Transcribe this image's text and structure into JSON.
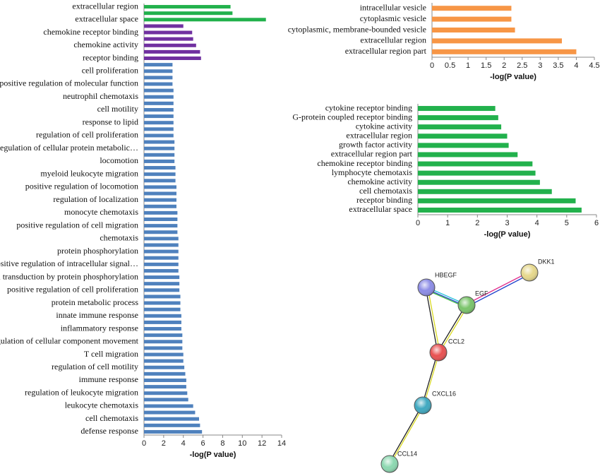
{
  "chart_data": [
    {
      "type": "bar",
      "orientation": "horizontal",
      "xlabel": "-log(P value)",
      "categories": [
        "extracellular region",
        null,
        "extracellular space",
        null,
        "chemokine receptor binding",
        null,
        "chemokine activity",
        null,
        "receptor binding",
        null,
        "cell proliferation",
        null,
        "positive regulation of molecular function",
        null,
        "neutrophil chemotaxis",
        null,
        "cell motility",
        null,
        "response to lipid",
        null,
        "regulation of cell proliferation",
        null,
        "regulation of cellular protein metabolic…",
        null,
        "locomotion",
        null,
        "myeloid leukocyte migration",
        null,
        "positive regulation of locomotion",
        null,
        "regulation of localization",
        null,
        "monocyte chemotaxis",
        null,
        "positive regulation of cell migration",
        null,
        "chemotaxis",
        null,
        "protein phosphorylation",
        null,
        "positive regulation of intracellular signal…",
        null,
        "signal transduction by protein phosphorylation",
        null,
        "positive regulation of cell proliferation",
        null,
        "protein metabolic process",
        null,
        "innate immune response",
        null,
        "inflammatory response",
        null,
        "regulation of cellular component movement",
        null,
        "T cell migration",
        null,
        "regulation of cell motility",
        null,
        "immune response",
        null,
        "regulation of leukocyte migration",
        null,
        "leukocyte chemotaxis",
        null,
        "cell chemotaxis",
        null,
        "defense response"
      ],
      "values": [
        8.8,
        9.0,
        12.4,
        4.0,
        4.9,
        5.0,
        5.3,
        5.7,
        5.8,
        2.9,
        2.9,
        2.9,
        2.9,
        3.0,
        3.0,
        3.0,
        3.0,
        3.0,
        3.0,
        3.0,
        3.0,
        3.1,
        3.1,
        3.1,
        3.1,
        3.2,
        3.2,
        3.2,
        3.3,
        3.3,
        3.3,
        3.3,
        3.4,
        3.4,
        3.4,
        3.4,
        3.5,
        3.5,
        3.5,
        3.5,
        3.5,
        3.5,
        3.6,
        3.6,
        3.6,
        3.7,
        3.7,
        3.7,
        3.8,
        3.8,
        3.8,
        3.9,
        3.9,
        3.9,
        4.0,
        4.0,
        4.1,
        4.2,
        4.3,
        4.3,
        4.4,
        4.5,
        5.0,
        5.2,
        5.6,
        5.7,
        5.9
      ],
      "colors": [
        "#22b14c",
        "#22b14c",
        "#22b14c",
        "#7030a0",
        "#7030a0",
        "#7030a0",
        "#7030a0",
        "#7030a0",
        "#7030a0",
        "#4f81bd",
        "#4f81bd",
        "#4f81bd",
        "#4f81bd",
        "#4f81bd",
        "#4f81bd",
        "#4f81bd",
        "#4f81bd",
        "#4f81bd",
        "#4f81bd",
        "#4f81bd",
        "#4f81bd",
        "#4f81bd",
        "#4f81bd",
        "#4f81bd",
        "#4f81bd",
        "#4f81bd",
        "#4f81bd",
        "#4f81bd",
        "#4f81bd",
        "#4f81bd",
        "#4f81bd",
        "#4f81bd",
        "#4f81bd",
        "#4f81bd",
        "#4f81bd",
        "#4f81bd",
        "#4f81bd",
        "#4f81bd",
        "#4f81bd",
        "#4f81bd",
        "#4f81bd",
        "#4f81bd",
        "#4f81bd",
        "#4f81bd",
        "#4f81bd",
        "#4f81bd",
        "#4f81bd",
        "#4f81bd",
        "#4f81bd",
        "#4f81bd",
        "#4f81bd",
        "#4f81bd",
        "#4f81bd",
        "#4f81bd",
        "#4f81bd",
        "#4f81bd",
        "#4f81bd",
        "#4f81bd",
        "#4f81bd",
        "#4f81bd",
        "#4f81bd",
        "#4f81bd",
        "#4f81bd",
        "#4f81bd",
        "#4f81bd",
        "#4f81bd",
        "#4f81bd"
      ],
      "xlim": [
        0,
        14
      ],
      "xticks": [
        0,
        2,
        4,
        6,
        8,
        10,
        12,
        14
      ]
    },
    {
      "type": "bar",
      "orientation": "horizontal",
      "xlabel": "-log(P value)",
      "categories": [
        "intracellular vesicle",
        "cytoplasmic vesicle",
        "cytoplasmic, membrane-bounded vesicle",
        "extracellular region",
        "extracellular region part"
      ],
      "values": [
        2.2,
        2.2,
        2.3,
        3.6,
        4.0
      ],
      "color": "#f79646",
      "xlim": [
        0,
        4.5
      ],
      "xticks": [
        0,
        0.5,
        1,
        1.5,
        2,
        2.5,
        3,
        3.5,
        4,
        4.5
      ]
    },
    {
      "type": "bar",
      "orientation": "horizontal",
      "xlabel": "-log(P value)",
      "categories": [
        "cytokine receptor binding",
        "G-protein coupled receptor binding",
        "cytokine activity",
        "extracellular region",
        "growth factor activity",
        "extracellular region part",
        "chemokine receptor binding",
        "lymphocyte chemotaxis",
        "chemokine activity",
        "cell chemotaxis",
        "receptor binding",
        "extracellular space"
      ],
      "values": [
        2.6,
        2.7,
        2.8,
        3.0,
        3.05,
        3.35,
        3.85,
        3.95,
        4.1,
        4.5,
        5.3,
        5.5
      ],
      "color": "#22b14c",
      "xlim": [
        0,
        6
      ],
      "xticks": [
        0,
        1,
        2,
        3,
        4,
        5,
        6
      ]
    }
  ],
  "network": {
    "nodes": [
      {
        "label": "HBEGF"
      },
      {
        "label": "EGF"
      },
      {
        "label": "DKK1"
      },
      {
        "label": "CCL2"
      },
      {
        "label": "CXCL16"
      },
      {
        "label": "CCL14"
      }
    ]
  }
}
